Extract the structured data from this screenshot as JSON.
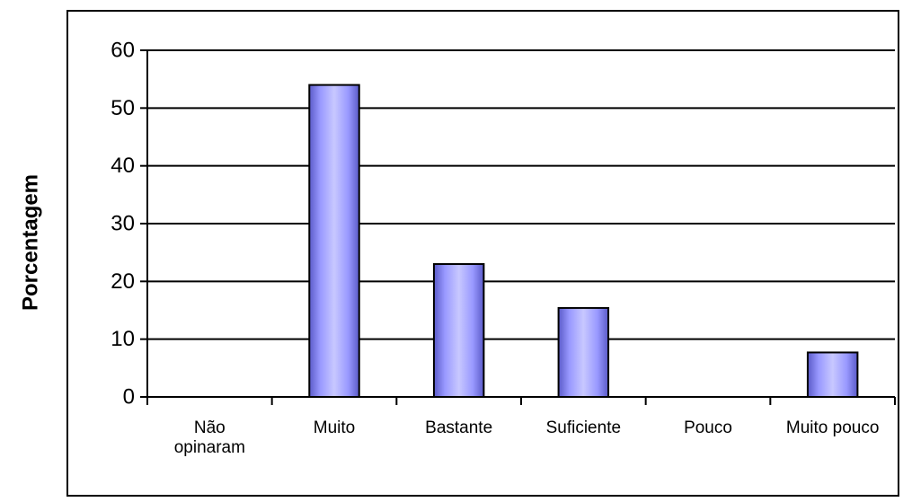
{
  "chart_data": {
    "type": "bar",
    "categories": [
      "Não opinaram",
      "Muito",
      "Bastante",
      "Suficiente",
      "Pouco",
      "Muito pouco"
    ],
    "values": [
      0,
      54,
      23,
      15.4,
      0,
      7.7
    ],
    "xlabel": "",
    "ylabel": "Porcentagem",
    "ylim": [
      0,
      60
    ],
    "yticks": [
      0,
      10,
      20,
      30,
      40,
      50,
      60
    ],
    "grid": true,
    "legend": "none",
    "colors": {
      "bar_light": "#c8c8ff",
      "bar_mid": "#9999ff",
      "bar_dark": "#5a5ac8",
      "outline": "#000000",
      "gridline": "#000000"
    }
  }
}
